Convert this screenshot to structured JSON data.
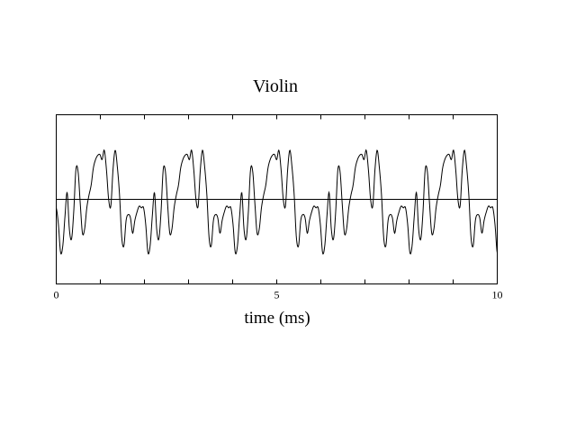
{
  "chart_data": {
    "type": "line",
    "title": "Violin",
    "xlabel": "time  (ms)",
    "ylabel": "",
    "xlim": [
      0,
      10
    ],
    "ylim": [
      -1,
      1
    ],
    "x_tick_labels": [
      {
        "x": 0,
        "label": "0"
      },
      {
        "x": 5,
        "label": "5"
      },
      {
        "x": 10,
        "label": "10"
      }
    ],
    "x_ticks": [
      0,
      1,
      2,
      3,
      4,
      5,
      6,
      7,
      8,
      9,
      10
    ],
    "zero_line": true,
    "grid": false,
    "period_ms": 1.98,
    "series": [
      {
        "x": [
          0.0,
          0.05,
          0.1,
          0.15,
          0.2,
          0.25,
          0.3,
          0.35,
          0.4,
          0.45,
          0.5,
          0.55,
          0.6,
          0.65,
          0.7,
          0.75,
          0.8,
          0.85,
          0.9,
          0.95,
          1.0,
          1.05,
          1.1,
          1.15,
          1.2,
          1.25,
          1.3,
          1.35,
          1.4,
          1.45,
          1.5,
          1.55,
          1.6,
          1.65,
          1.7,
          1.75,
          1.8,
          1.85,
          1.9,
          1.95
        ],
        "y": [
          -0.1,
          -0.3,
          -0.63,
          -0.55,
          -0.2,
          0.08,
          -0.35,
          -0.47,
          -0.15,
          0.35,
          0.33,
          -0.05,
          -0.4,
          -0.35,
          -0.1,
          0.05,
          0.17,
          0.37,
          0.47,
          0.52,
          0.53,
          0.47,
          0.58,
          0.35,
          0.0,
          -0.08,
          0.35,
          0.58,
          0.38,
          0.05,
          -0.45,
          -0.55,
          -0.25,
          -0.18,
          -0.22,
          -0.4,
          -0.25,
          -0.15,
          -0.08,
          -0.1
        ]
      }
    ]
  }
}
